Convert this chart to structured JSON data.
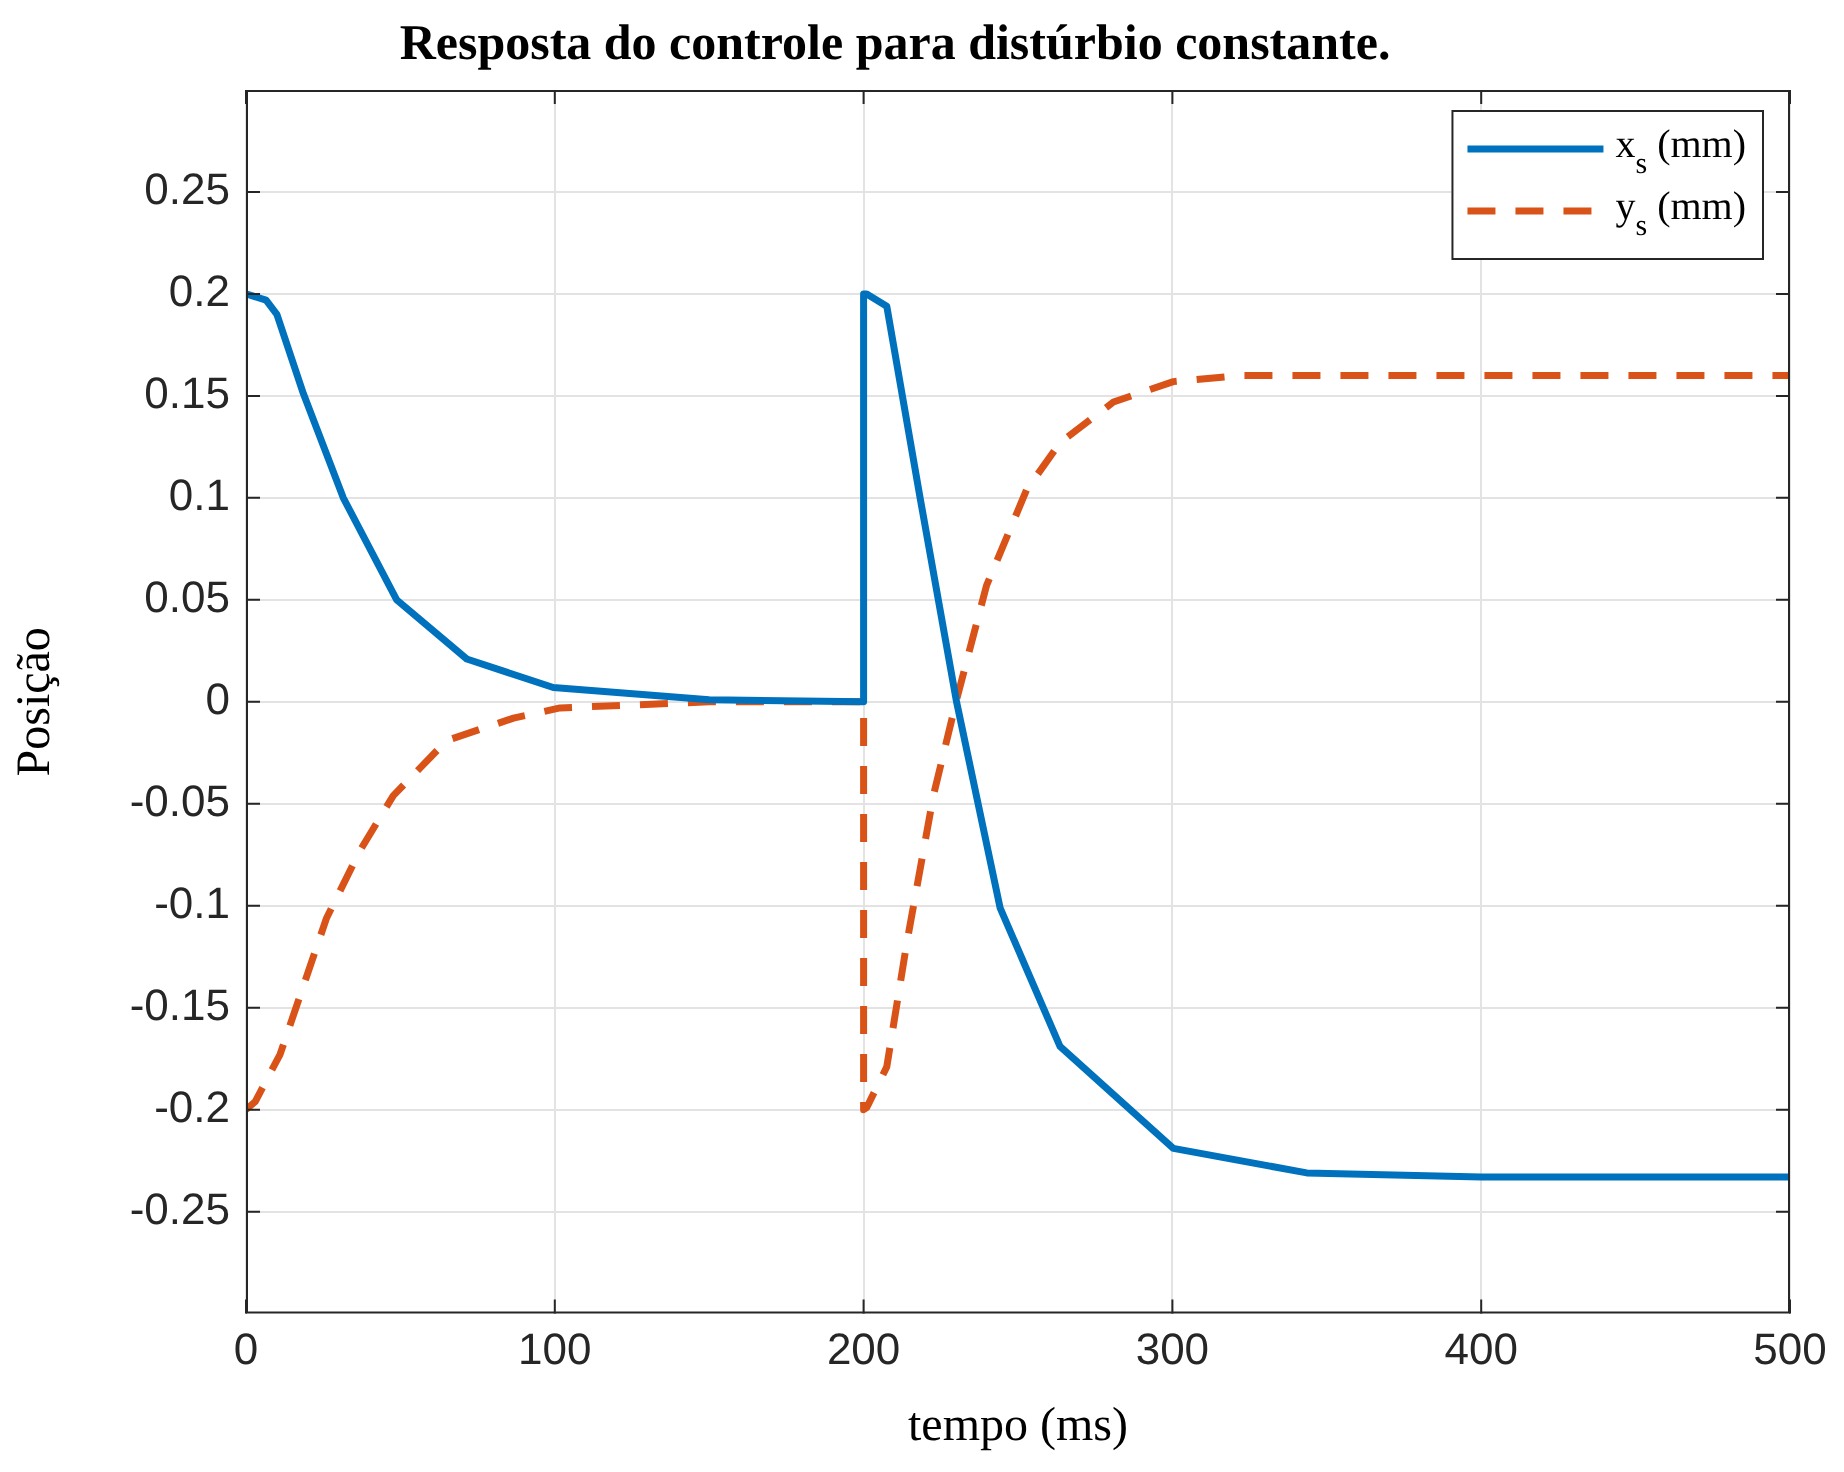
{
  "chart_data": {
    "type": "line",
    "title": "Resposta do controle para distúrbio constante.",
    "xlabel": "tempo (ms)",
    "ylabel": "Posição",
    "xlim": [
      0,
      500
    ],
    "xticks": [
      0,
      100,
      200,
      300,
      400,
      500
    ],
    "ylim": [
      -0.3,
      0.3
    ],
    "yticks": [
      -0.25,
      -0.2,
      -0.15,
      -0.1,
      -0.05,
      0,
      0.05,
      0.1,
      0.15,
      0.2,
      0.25
    ],
    "grid": true,
    "legend": "top right",
    "marker": "none",
    "series": [
      {
        "name": "x$_{s}$ (mm)",
        "color": "#0072bd",
        "line_style": "solid",
        "x": [
          0,
          6.5,
          10,
          18.6,
          31.5,
          48.8,
          71.5,
          99.5,
          150,
          200,
          200,
          201,
          207.5,
          218.3,
          230.1,
          244.2,
          263.6,
          300.3,
          343.5,
          400,
          500
        ],
        "values": [
          0.2,
          0.197,
          0.19,
          0.151,
          0.1,
          0.05,
          0.021,
          0.007,
          0.001,
          0,
          0.2,
          0.2,
          0.194,
          0.1,
          0,
          -0.101,
          -0.169,
          -0.219,
          -0.231,
          -0.233,
          -0.233
        ]
      },
      {
        "name": "y$_{s}$ (mm)",
        "color": "#d95319",
        "line_style": "dashed",
        "x": [
          0,
          3,
          11,
          26.1,
          36.9,
          47.7,
          65,
          86.6,
          101.7,
          150,
          200,
          200,
          201,
          207.5,
          213.9,
          222.6,
          230.1,
          239.8,
          252.8,
          263.6,
          280.9,
          300.3,
          321.9,
          400,
          500
        ],
        "values": [
          -0.2,
          -0.196,
          -0.173,
          -0.106,
          -0.073,
          -0.046,
          -0.019,
          -0.008,
          -0.003,
          0,
          0,
          -0.2,
          -0.199,
          -0.179,
          -0.119,
          -0.046,
          0.001,
          0.057,
          0.104,
          0.127,
          0.147,
          0.157,
          0.16,
          0.16,
          0.16
        ]
      }
    ]
  }
}
